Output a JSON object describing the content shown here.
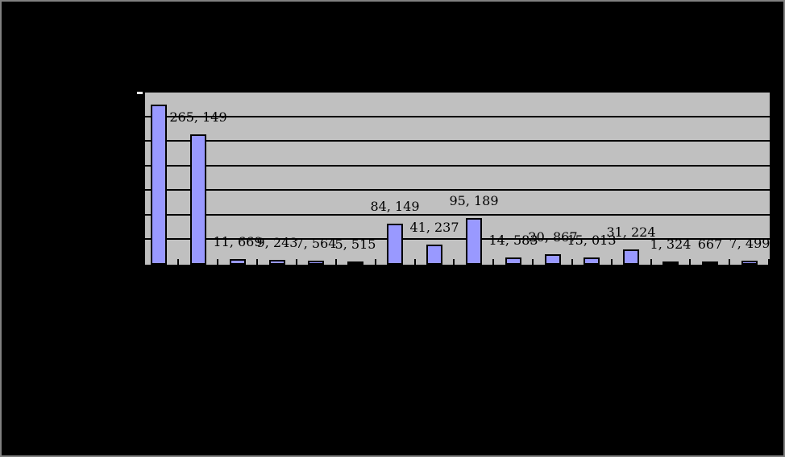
{
  "window": {
    "background_color": "#000000",
    "border_color": "#808080"
  },
  "chart_data": {
    "type": "bar",
    "title": "",
    "xlabel": "",
    "ylabel": "",
    "values": [
      325000,
      265149,
      11669,
      9243,
      7564,
      5515,
      84149,
      41237,
      95189,
      14583,
      20867,
      15013,
      31224,
      1324,
      667,
      7499
    ],
    "data_labels": [
      "",
      "265, 149",
      "11, 669",
      "9, 243",
      "7, 564",
      "5, 515",
      "84, 149",
      "41, 237",
      "95, 189",
      "14, 583",
      "20, 867",
      "15, 013",
      "31, 224",
      "1, 324",
      "667",
      "7, 499"
    ],
    "ylim": [
      0,
      350000
    ],
    "gridline_step": 50000,
    "grid": true,
    "legend_position": "none",
    "axis_tick_labels_visible": false,
    "notes": "first bar value estimated from gridlines; its data label is not visible",
    "colors": {
      "bar_fill": "#9999FF",
      "bar_border": "#000000",
      "plot_background": "#C0C0C0",
      "gridline": "#000000",
      "axis": "#000000",
      "label_text": "#000000"
    }
  }
}
